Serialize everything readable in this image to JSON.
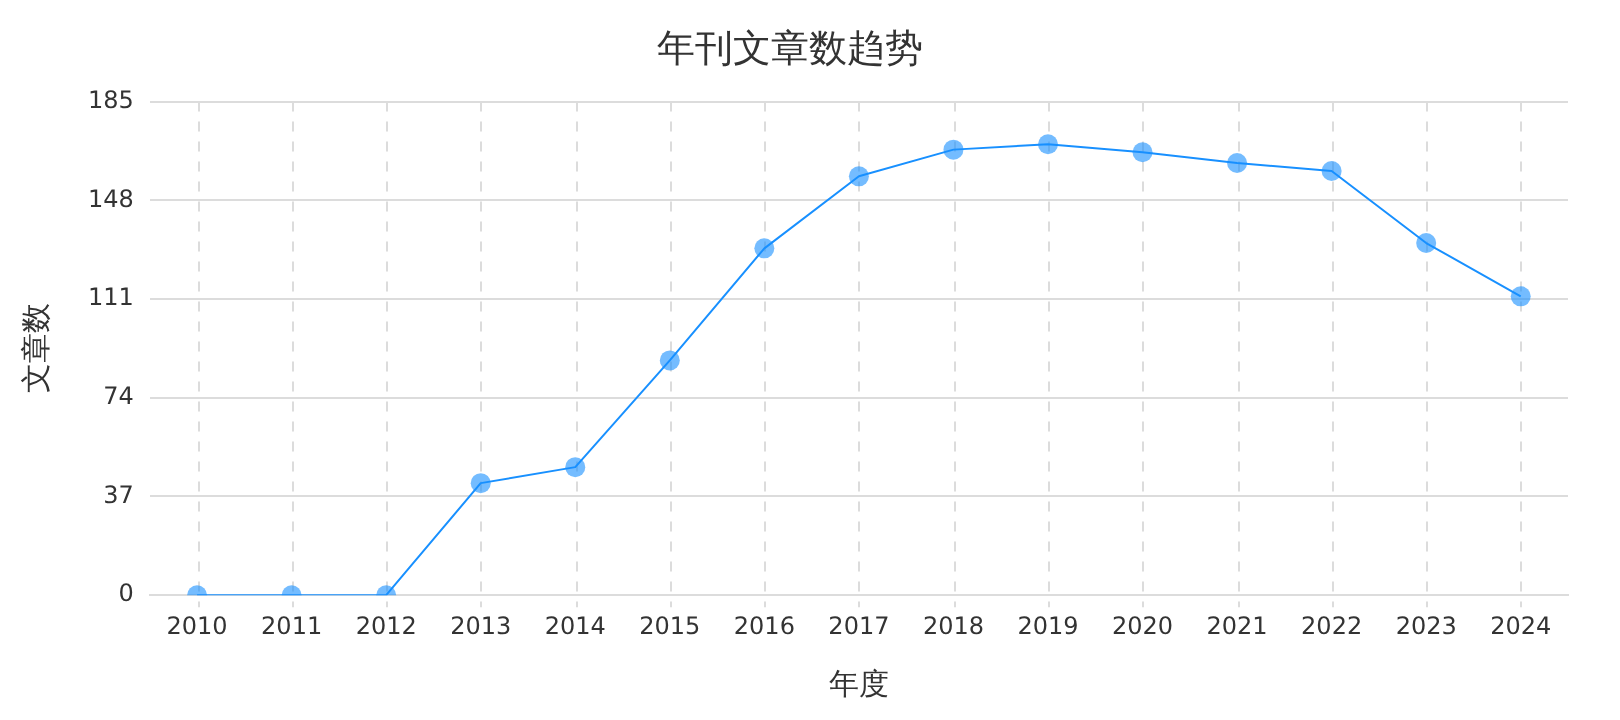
{
  "chart_data": {
    "type": "line",
    "title": "年刊文章数趋势",
    "xlabel": "年度",
    "ylabel": "文章数",
    "categories": [
      "2010",
      "2011",
      "2012",
      "2013",
      "2014",
      "2015",
      "2016",
      "2017",
      "2018",
      "2019",
      "2020",
      "2021",
      "2022",
      "2023",
      "2024"
    ],
    "series": [
      {
        "color": "#1890ff",
        "values": [
          0,
          0,
          0,
          42,
          48,
          88,
          130,
          157,
          167,
          169,
          166,
          162,
          159,
          132,
          112
        ]
      }
    ],
    "ylim": [
      0,
      185
    ],
    "yticks": [
      0,
      37,
      74,
      111,
      148,
      185
    ],
    "grid": true,
    "legend": false,
    "marker": "circle",
    "line_style": "solid"
  }
}
